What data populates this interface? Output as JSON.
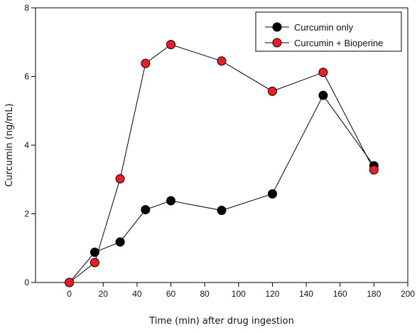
{
  "chart_data": {
    "type": "line",
    "xlabel": "Time (min) after drug ingestion",
    "ylabel": "Curcumin (ng/mL)",
    "xlim": [
      -20,
      200
    ],
    "ylim": [
      0,
      8
    ],
    "xticks": [
      0,
      20,
      40,
      60,
      80,
      100,
      120,
      140,
      160,
      180,
      200
    ],
    "yticks": [
      0,
      2,
      4,
      6,
      8
    ],
    "grid": false,
    "legend_position": "top-right",
    "series": [
      {
        "name": "Curcumin only",
        "color": "#000000",
        "x": [
          0,
          15,
          30,
          45,
          60,
          90,
          120,
          150,
          180
        ],
        "y": [
          0,
          0.88,
          1.18,
          2.12,
          2.38,
          2.1,
          2.58,
          5.45,
          3.4
        ]
      },
      {
        "name": "Curcumin + Bioperine",
        "color": "#ee1c24",
        "x": [
          0,
          15,
          30,
          45,
          60,
          90,
          120,
          150,
          180
        ],
        "y": [
          0,
          0.58,
          3.02,
          6.38,
          6.93,
          6.45,
          5.57,
          6.12,
          3.28
        ]
      }
    ]
  }
}
